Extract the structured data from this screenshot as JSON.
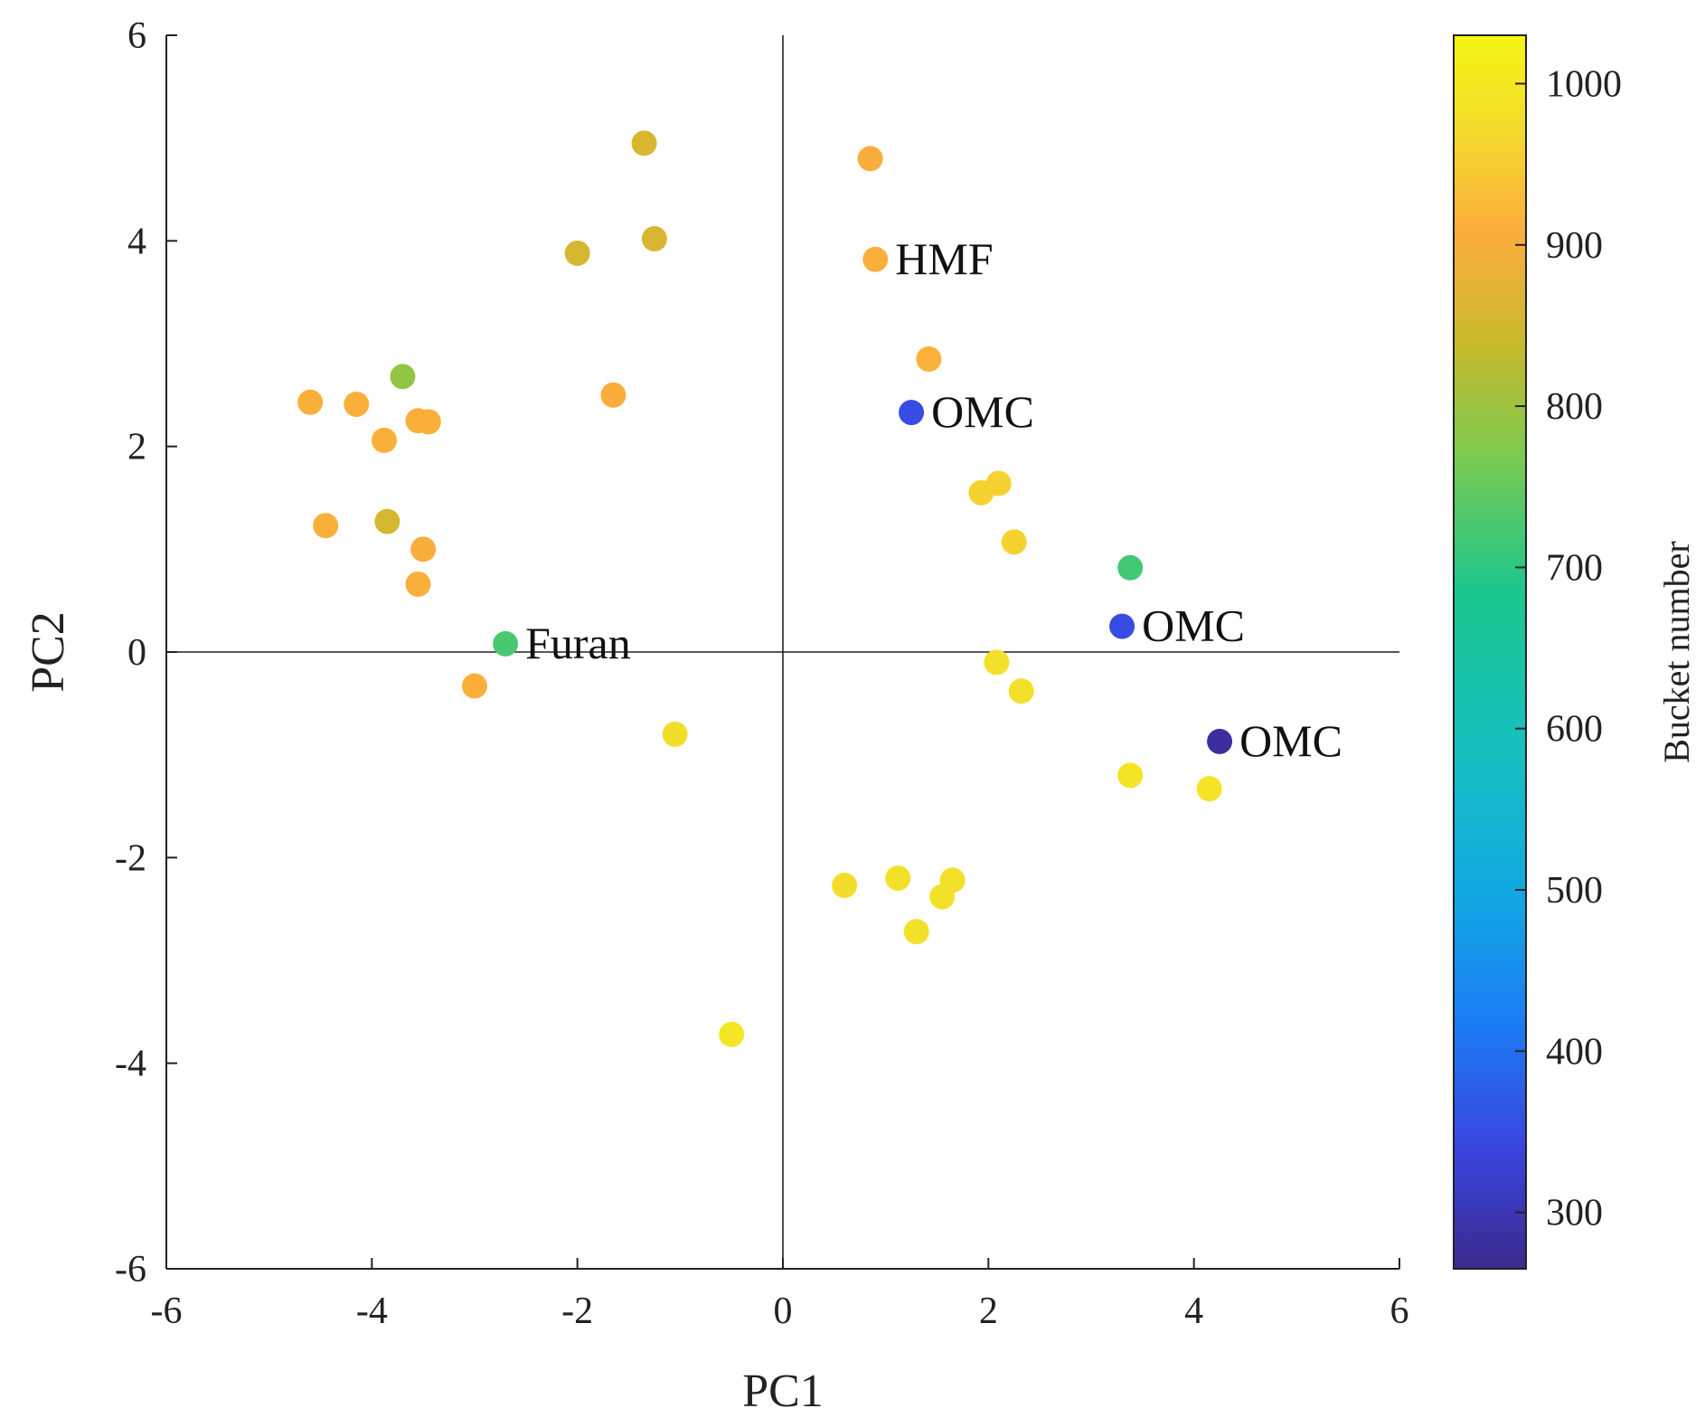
{
  "chart_data": {
    "type": "scatter",
    "xlabel": "PC1",
    "ylabel": "PC2",
    "xlim": [
      -6,
      6
    ],
    "ylim": [
      -6,
      6
    ],
    "xticks": [
      "-6",
      "-4",
      "-2",
      "0",
      "2",
      "4",
      "6"
    ],
    "yticks": [
      "6",
      "4",
      "2",
      "0",
      "-2",
      "-4",
      "-6"
    ],
    "reference_lines": [
      "x = 0",
      "y = 0"
    ],
    "grid": false,
    "legend": "none",
    "colorbar": {
      "label": "Bucket number",
      "range": [
        265,
        1030
      ],
      "ticks": [
        "1000",
        "900",
        "800",
        "700",
        "600",
        "500",
        "400",
        "300"
      ],
      "colormap_stops": [
        "#3b2a8f",
        "#3a46e0",
        "#1b7cf5",
        "#12a7e4",
        "#17c0c0",
        "#1cc78d",
        "#7cca4f",
        "#c8ba2b",
        "#fbad3c",
        "#f3de2b",
        "#f7f512"
      ],
      "placement": "right"
    },
    "points": [
      {
        "x": -1.35,
        "y": 4.95,
        "bucket": 860
      },
      {
        "x": -1.25,
        "y": 4.02,
        "bucket": 860
      },
      {
        "x": -2.0,
        "y": 3.88,
        "bucket": 855
      },
      {
        "x": 0.85,
        "y": 4.8,
        "bucket": 905
      },
      {
        "x": 0.9,
        "y": 3.82,
        "bucket": 910,
        "label": "HMF"
      },
      {
        "x": 1.42,
        "y": 2.85,
        "bucket": 915
      },
      {
        "x": 1.25,
        "y": 2.33,
        "bucket": 350,
        "label": "OMC"
      },
      {
        "x": -3.7,
        "y": 2.68,
        "bucket": 790
      },
      {
        "x": -4.6,
        "y": 2.43,
        "bucket": 910
      },
      {
        "x": -4.15,
        "y": 2.41,
        "bucket": 910
      },
      {
        "x": -3.88,
        "y": 2.06,
        "bucket": 910
      },
      {
        "x": -3.55,
        "y": 2.25,
        "bucket": 910
      },
      {
        "x": -3.45,
        "y": 2.24,
        "bucket": 910
      },
      {
        "x": -1.65,
        "y": 2.5,
        "bucket": 905
      },
      {
        "x": -4.45,
        "y": 1.23,
        "bucket": 910
      },
      {
        "x": -3.85,
        "y": 1.27,
        "bucket": 855
      },
      {
        "x": -3.5,
        "y": 1.0,
        "bucket": 905
      },
      {
        "x": -3.55,
        "y": 0.66,
        "bucket": 910
      },
      {
        "x": -2.7,
        "y": 0.08,
        "bucket": 725,
        "label": "Furan"
      },
      {
        "x": -3.0,
        "y": -0.33,
        "bucket": 910
      },
      {
        "x": -1.05,
        "y": -0.8,
        "bucket": 975
      },
      {
        "x": 1.93,
        "y": 1.55,
        "bucket": 960
      },
      {
        "x": 2.1,
        "y": 1.64,
        "bucket": 960
      },
      {
        "x": 2.25,
        "y": 1.07,
        "bucket": 960
      },
      {
        "x": 3.38,
        "y": 0.82,
        "bucket": 720
      },
      {
        "x": 3.3,
        "y": 0.25,
        "bucket": 350,
        "label": "OMC"
      },
      {
        "x": 2.08,
        "y": -0.1,
        "bucket": 980
      },
      {
        "x": 2.32,
        "y": -0.38,
        "bucket": 980
      },
      {
        "x": 4.25,
        "y": -0.87,
        "bucket": 280,
        "label": "OMC"
      },
      {
        "x": 3.38,
        "y": -1.2,
        "bucket": 990
      },
      {
        "x": 4.15,
        "y": -1.33,
        "bucket": 990
      },
      {
        "x": 0.6,
        "y": -2.27,
        "bucket": 975
      },
      {
        "x": 1.12,
        "y": -2.2,
        "bucket": 980
      },
      {
        "x": 1.65,
        "y": -2.22,
        "bucket": 980
      },
      {
        "x": 1.55,
        "y": -2.38,
        "bucket": 980
      },
      {
        "x": 1.3,
        "y": -2.72,
        "bucket": 980
      },
      {
        "x": -0.5,
        "y": -3.72,
        "bucket": 995
      }
    ]
  }
}
